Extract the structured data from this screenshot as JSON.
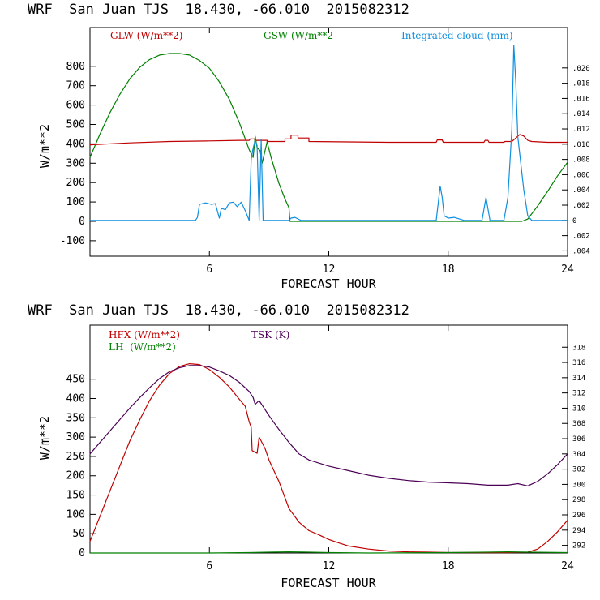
{
  "chart_data": [
    {
      "type": "line",
      "title": "WRF  San Juan TJS  18.430, -66.010  2015082312",
      "xlabel": "FORECAST HOUR",
      "ylabel": "W/m**2",
      "xlim": [
        0,
        24
      ],
      "ylim": [
        -180,
        1000
      ],
      "x_ticks": [
        6,
        12,
        18,
        24
      ],
      "y_ticks": [
        -100,
        0,
        100,
        200,
        300,
        400,
        500,
        600,
        700,
        800
      ],
      "y2lim": [
        -0.0047,
        0.0253
      ],
      "y2_ticks": [
        -0.004,
        -0.002,
        0,
        0.002,
        0.004,
        0.006,
        0.008,
        0.01,
        0.012,
        0.014,
        0.016,
        0.018,
        0.02
      ],
      "y2_tick_labels": [
        ".004",
        ".002",
        "0",
        ".002",
        ".004",
        ".006",
        ".008",
        ".010",
        ".012",
        ".014",
        ".016",
        ".018",
        ".020"
      ],
      "series": [
        {
          "name": "GLW (W/m**2)",
          "axis": "left",
          "color": "#c00000",
          "points": [
            [
              0,
              395
            ],
            [
              2,
              405
            ],
            [
              4,
              412
            ],
            [
              6,
              415
            ],
            [
              7.5,
              418
            ],
            [
              8,
              418
            ],
            [
              8.05,
              425
            ],
            [
              8.25,
              425
            ],
            [
              8.3,
              418
            ],
            [
              8.9,
              418
            ],
            [
              8.9,
              412
            ],
            [
              9.8,
              412
            ],
            [
              9.8,
              425
            ],
            [
              10.1,
              425
            ],
            [
              10.1,
              445
            ],
            [
              10.45,
              445
            ],
            [
              10.45,
              430
            ],
            [
              11,
              430
            ],
            [
              11,
              412
            ],
            [
              13,
              410
            ],
            [
              15,
              408
            ],
            [
              17.4,
              408
            ],
            [
              17.45,
              420
            ],
            [
              17.7,
              420
            ],
            [
              17.75,
              408
            ],
            [
              19.8,
              408
            ],
            [
              19.85,
              418
            ],
            [
              20,
              418
            ],
            [
              20.05,
              408
            ],
            [
              20.8,
              408
            ],
            [
              20.85,
              412
            ],
            [
              21.2,
              412
            ],
            [
              21.4,
              430
            ],
            [
              21.6,
              448
            ],
            [
              21.8,
              440
            ],
            [
              22,
              418
            ],
            [
              22.2,
              412
            ],
            [
              23,
              408
            ],
            [
              24,
              408
            ]
          ]
        },
        {
          "name": "GSW (W/m**2",
          "axis": "left",
          "color": "#008000",
          "points": [
            [
              0,
              330
            ],
            [
              0.5,
              450
            ],
            [
              1,
              560
            ],
            [
              1.5,
              655
            ],
            [
              2,
              735
            ],
            [
              2.5,
              795
            ],
            [
              3,
              835
            ],
            [
              3.5,
              858
            ],
            [
              4,
              866
            ],
            [
              4.5,
              866
            ],
            [
              5,
              858
            ],
            [
              5.5,
              830
            ],
            [
              6,
              790
            ],
            [
              6.5,
              720
            ],
            [
              7,
              630
            ],
            [
              7.5,
              510
            ],
            [
              8,
              370
            ],
            [
              8.2,
              330
            ],
            [
              8.3,
              440
            ],
            [
              8.4,
              380
            ],
            [
              8.55,
              365
            ],
            [
              8.65,
              300
            ],
            [
              8.9,
              410
            ],
            [
              9.1,
              330
            ],
            [
              9.5,
              195
            ],
            [
              9.8,
              115
            ],
            [
              10,
              70
            ],
            [
              10.05,
              0
            ],
            [
              21.7,
              0
            ],
            [
              21.9,
              8
            ],
            [
              22,
              12
            ],
            [
              22.5,
              80
            ],
            [
              23,
              155
            ],
            [
              23.5,
              235
            ],
            [
              24,
              305
            ]
          ]
        },
        {
          "name": "Integrated cloud (mm)",
          "axis": "right",
          "color": "#0f8fe0",
          "points": [
            [
              0,
              0
            ],
            [
              5.3,
              0
            ],
            [
              5.4,
              0.0004
            ],
            [
              5.5,
              0.0021
            ],
            [
              5.8,
              0.0023
            ],
            [
              6.1,
              0.0021
            ],
            [
              6.3,
              0.0022
            ],
            [
              6.5,
              0.0003
            ],
            [
              6.6,
              0.0016
            ],
            [
              6.8,
              0.0014
            ],
            [
              7,
              0.0023
            ],
            [
              7.2,
              0.0024
            ],
            [
              7.4,
              0.0018
            ],
            [
              7.6,
              0.0024
            ],
            [
              7.8,
              0.0013
            ],
            [
              8,
              0
            ],
            [
              8.1,
              0.008
            ],
            [
              8.2,
              0.0095
            ],
            [
              8.3,
              0.0105
            ],
            [
              8.4,
              0.0098
            ],
            [
              8.5,
              0
            ],
            [
              8.6,
              0.0106
            ],
            [
              8.7,
              0
            ],
            [
              10,
              0
            ],
            [
              10.1,
              0.0003
            ],
            [
              10.3,
              0.0004
            ],
            [
              10.6,
              0
            ],
            [
              17.4,
              0
            ],
            [
              17.6,
              0.0045
            ],
            [
              17.7,
              0.003
            ],
            [
              17.8,
              0.0006
            ],
            [
              18,
              0.0003
            ],
            [
              18.3,
              0.0004
            ],
            [
              18.8,
              0
            ],
            [
              19.7,
              0
            ],
            [
              19.9,
              0.003
            ],
            [
              20.1,
              0
            ],
            [
              20.8,
              0
            ],
            [
              21,
              0.003
            ],
            [
              21.2,
              0.012
            ],
            [
              21.3,
              0.023
            ],
            [
              21.4,
              0.018
            ],
            [
              21.5,
              0.011
            ],
            [
              21.8,
              0.004
            ],
            [
              22,
              0.0006
            ],
            [
              22.2,
              0
            ],
            [
              24,
              0
            ]
          ]
        }
      ],
      "legend": [
        {
          "label": "GLW (W/m**2)",
          "color": "#c00000",
          "position": "top-left"
        },
        {
          "label": "GSW (W/m**2",
          "color": "#008000",
          "position": "top-center"
        },
        {
          "label": "Integrated cloud (mm)",
          "color": "#0f8fe0",
          "position": "top-right"
        }
      ]
    },
    {
      "type": "line",
      "title": "WRF  San Juan TJS  18.430, -66.010  2015082312",
      "xlabel": "FORECAST HOUR",
      "ylabel": "W/m**2",
      "xlim": [
        0,
        24
      ],
      "ylim": [
        0,
        590
      ],
      "x_ticks": [
        6,
        12,
        18,
        24
      ],
      "y_ticks": [
        0,
        50,
        100,
        150,
        200,
        250,
        300,
        350,
        400,
        450
      ],
      "y2lim": [
        291.0,
        320.9
      ],
      "y2_ticks": [
        292,
        294,
        296,
        298,
        300,
        302,
        304,
        306,
        308,
        310,
        312,
        314,
        316,
        318
      ],
      "series": [
        {
          "name": "HFX (W/m**2)",
          "axis": "left",
          "color": "#c00000",
          "points": [
            [
              0,
              30
            ],
            [
              0.5,
              95
            ],
            [
              1,
              160
            ],
            [
              1.5,
              225
            ],
            [
              2,
              290
            ],
            [
              2.5,
              345
            ],
            [
              3,
              395
            ],
            [
              3.5,
              435
            ],
            [
              4,
              465
            ],
            [
              4.5,
              483
            ],
            [
              5,
              490
            ],
            [
              5.5,
              488
            ],
            [
              6,
              475
            ],
            [
              6.5,
              455
            ],
            [
              7,
              430
            ],
            [
              7.5,
              398
            ],
            [
              7.8,
              380
            ],
            [
              8,
              340
            ],
            [
              8.1,
              325
            ],
            [
              8.15,
              265
            ],
            [
              8.4,
              258
            ],
            [
              8.5,
              300
            ],
            [
              8.6,
              290
            ],
            [
              8.8,
              270
            ],
            [
              9,
              240
            ],
            [
              9.5,
              185
            ],
            [
              10,
              115
            ],
            [
              10.5,
              80
            ],
            [
              11,
              58
            ],
            [
              11.5,
              47
            ],
            [
              12,
              35
            ],
            [
              12.5,
              26
            ],
            [
              13,
              18
            ],
            [
              14,
              10
            ],
            [
              15,
              5
            ],
            [
              16,
              3
            ],
            [
              17,
              2
            ],
            [
              18,
              1
            ],
            [
              20,
              1
            ],
            [
              21,
              1
            ],
            [
              22,
              2
            ],
            [
              22.5,
              10
            ],
            [
              23,
              30
            ],
            [
              23.5,
              55
            ],
            [
              24,
              85
            ]
          ]
        },
        {
          "name": "LH (W/m**2)",
          "axis": "left",
          "color": "#008000",
          "points": [
            [
              0,
              0
            ],
            [
              6,
              0
            ],
            [
              8,
              1
            ],
            [
              9,
              2
            ],
            [
              10,
              3
            ],
            [
              11,
              2
            ],
            [
              12,
              1
            ],
            [
              14,
              0
            ],
            [
              18,
              1
            ],
            [
              20,
              2
            ],
            [
              21,
              3
            ],
            [
              22,
              2
            ],
            [
              24,
              1
            ]
          ]
        },
        {
          "name": "TSK (K)",
          "axis": "right",
          "color": "#4b0055",
          "points": [
            [
              0,
              304.0
            ],
            [
              0.5,
              305.5
            ],
            [
              1,
              307.0
            ],
            [
              1.5,
              308.5
            ],
            [
              2,
              310.0
            ],
            [
              2.5,
              311.4
            ],
            [
              3,
              312.7
            ],
            [
              3.5,
              313.9
            ],
            [
              4,
              314.8
            ],
            [
              4.5,
              315.3
            ],
            [
              5,
              315.6
            ],
            [
              5.5,
              315.6
            ],
            [
              6,
              315.4
            ],
            [
              6.5,
              314.9
            ],
            [
              7,
              314.3
            ],
            [
              7.5,
              313.4
            ],
            [
              8,
              312.2
            ],
            [
              8.2,
              311.4
            ],
            [
              8.3,
              310.5
            ],
            [
              8.5,
              311.0
            ],
            [
              8.7,
              310.2
            ],
            [
              9,
              309.0
            ],
            [
              9.5,
              307.2
            ],
            [
              10,
              305.5
            ],
            [
              10.5,
              304.0
            ],
            [
              11,
              303.2
            ],
            [
              12,
              302.4
            ],
            [
              13,
              301.8
            ],
            [
              14,
              301.2
            ],
            [
              15,
              300.8
            ],
            [
              16,
              300.5
            ],
            [
              17,
              300.3
            ],
            [
              18,
              300.2
            ],
            [
              19,
              300.1
            ],
            [
              20,
              299.9
            ],
            [
              21,
              299.9
            ],
            [
              21.5,
              300.1
            ],
            [
              22,
              299.8
            ],
            [
              22.5,
              300.4
            ],
            [
              23,
              301.4
            ],
            [
              23.5,
              302.6
            ],
            [
              24,
              304.0
            ]
          ]
        }
      ],
      "legend": [
        {
          "label": "HFX (W/m**2)",
          "color": "#c00000",
          "position": "top-left"
        },
        {
          "label": "LH  (W/m**2)",
          "color": "#008000",
          "position": "top-left"
        },
        {
          "label": "TSK (K)",
          "color": "#4b0055",
          "position": "top-center"
        }
      ]
    }
  ]
}
